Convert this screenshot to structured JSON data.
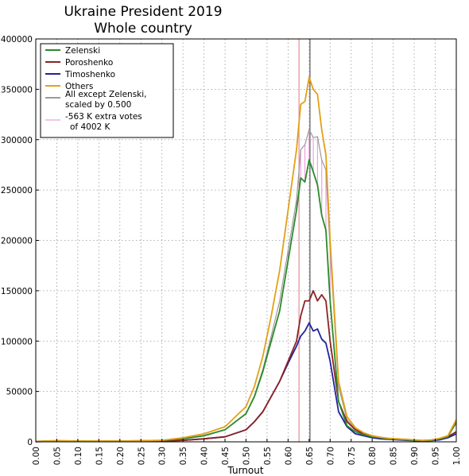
{
  "chart_data": {
    "type": "line",
    "title": "Ukraine President 2019",
    "subtitle": "Whole country",
    "xlabel": "Turnout",
    "ylabel": "",
    "xlim": [
      0.0,
      1.0
    ],
    "ylim": [
      0,
      400000
    ],
    "x_ticks": [
      "0.00",
      "0.05",
      "0.10",
      "0.15",
      "0.20",
      "0.25",
      "0.30",
      "0.35",
      "0.40",
      "0.45",
      "0.50",
      "0.55",
      "0.60",
      "0.65",
      "0.70",
      "0.75",
      "0.80",
      "0.85",
      "0.90",
      "0.95",
      "1.00"
    ],
    "y_ticks": [
      "0",
      "50000",
      "100000",
      "150000",
      "200000",
      "250000",
      "300000",
      "350000",
      "400000"
    ],
    "grid": true,
    "legend_position": "top-left",
    "legend": [
      {
        "label": "Zelenski",
        "color": "#2a8a2a"
      },
      {
        "label": "Poroshenko",
        "color": "#8b2323"
      },
      {
        "label": "Timoshenko",
        "color": "#22229e"
      },
      {
        "label": "Others",
        "color": "#e3a018"
      },
      {
        "label": "All except Zelenski, scaled by 0.500",
        "line1": "All except Zelenski,",
        "line2": "scaled by 0.500",
        "color": "#9a9a9a"
      },
      {
        "label": "-563 K extra votes of 4002 K",
        "line1": "-563 K extra votes",
        "line2": "of 4002 K",
        "color": "#f0a0e0"
      }
    ],
    "vlines": [
      {
        "x": 0.626,
        "color": "#e39090"
      },
      {
        "x": 0.652,
        "color": "#555555"
      }
    ],
    "x": [
      0.0,
      0.05,
      0.1,
      0.15,
      0.2,
      0.25,
      0.3,
      0.35,
      0.4,
      0.45,
      0.5,
      0.52,
      0.54,
      0.56,
      0.58,
      0.6,
      0.62,
      0.63,
      0.64,
      0.65,
      0.66,
      0.67,
      0.68,
      0.69,
      0.7,
      0.72,
      0.74,
      0.76,
      0.78,
      0.8,
      0.82,
      0.84,
      0.86,
      0.88,
      0.9,
      0.92,
      0.94,
      0.96,
      0.98,
      1.0
    ],
    "series": [
      {
        "name": "Zelenski",
        "color": "#2a8a2a",
        "values": [
          500,
          1000,
          800,
          900,
          800,
          1000,
          1500,
          3000,
          6000,
          12000,
          28000,
          45000,
          70000,
          100000,
          130000,
          180000,
          230000,
          262000,
          258000,
          280000,
          268000,
          255000,
          225000,
          210000,
          140000,
          40000,
          16000,
          10000,
          7000,
          5000,
          4000,
          3000,
          2500,
          2000,
          1500,
          1200,
          1500,
          3000,
          5000,
          20000
        ]
      },
      {
        "name": "Poroshenko",
        "color": "#8b2323",
        "values": [
          200,
          500,
          400,
          400,
          400,
          500,
          700,
          1500,
          3000,
          5000,
          12000,
          20000,
          30000,
          45000,
          60000,
          80000,
          100000,
          125000,
          140000,
          140000,
          150000,
          140000,
          146000,
          140000,
          100000,
          40000,
          20000,
          12000,
          8000,
          6000,
          4000,
          3000,
          2500,
          2000,
          1500,
          1200,
          1500,
          3000,
          5000,
          10000
        ]
      },
      {
        "name": "Timoshenko",
        "color": "#22229e",
        "values": [
          200,
          500,
          400,
          400,
          400,
          500,
          700,
          1500,
          3000,
          5000,
          12000,
          20000,
          30000,
          45000,
          60000,
          78000,
          95000,
          105000,
          110000,
          118000,
          110000,
          112000,
          102000,
          98000,
          80000,
          30000,
          15000,
          8000,
          6000,
          4000,
          3000,
          2500,
          2000,
          1500,
          1200,
          1000,
          1200,
          2000,
          4000,
          8000
        ]
      },
      {
        "name": "Others",
        "color": "#e3a018",
        "values": [
          500,
          1000,
          800,
          900,
          800,
          1000,
          1500,
          4000,
          8000,
          15000,
          35000,
          55000,
          85000,
          125000,
          170000,
          230000,
          290000,
          335000,
          338000,
          362000,
          350000,
          345000,
          310000,
          285000,
          200000,
          60000,
          25000,
          14000,
          9000,
          6000,
          4500,
          3500,
          3000,
          2500,
          2000,
          1500,
          2000,
          3500,
          6000,
          22000
        ]
      },
      {
        "name": "All except Zelenski, scaled by 0.500",
        "color": "#9a9a9a",
        "values": [
          400,
          800,
          700,
          800,
          700,
          900,
          1300,
          3000,
          6500,
          12000,
          28000,
          46000,
          72000,
          105000,
          140000,
          190000,
          240000,
          290000,
          295000,
          310000,
          302000,
          303000,
          280000,
          270000,
          190000,
          55000,
          22000,
          13000,
          8500,
          6000,
          4500,
          3500,
          3000,
          2500,
          2000,
          1500,
          2000,
          3000,
          5500,
          18000
        ]
      }
    ]
  }
}
